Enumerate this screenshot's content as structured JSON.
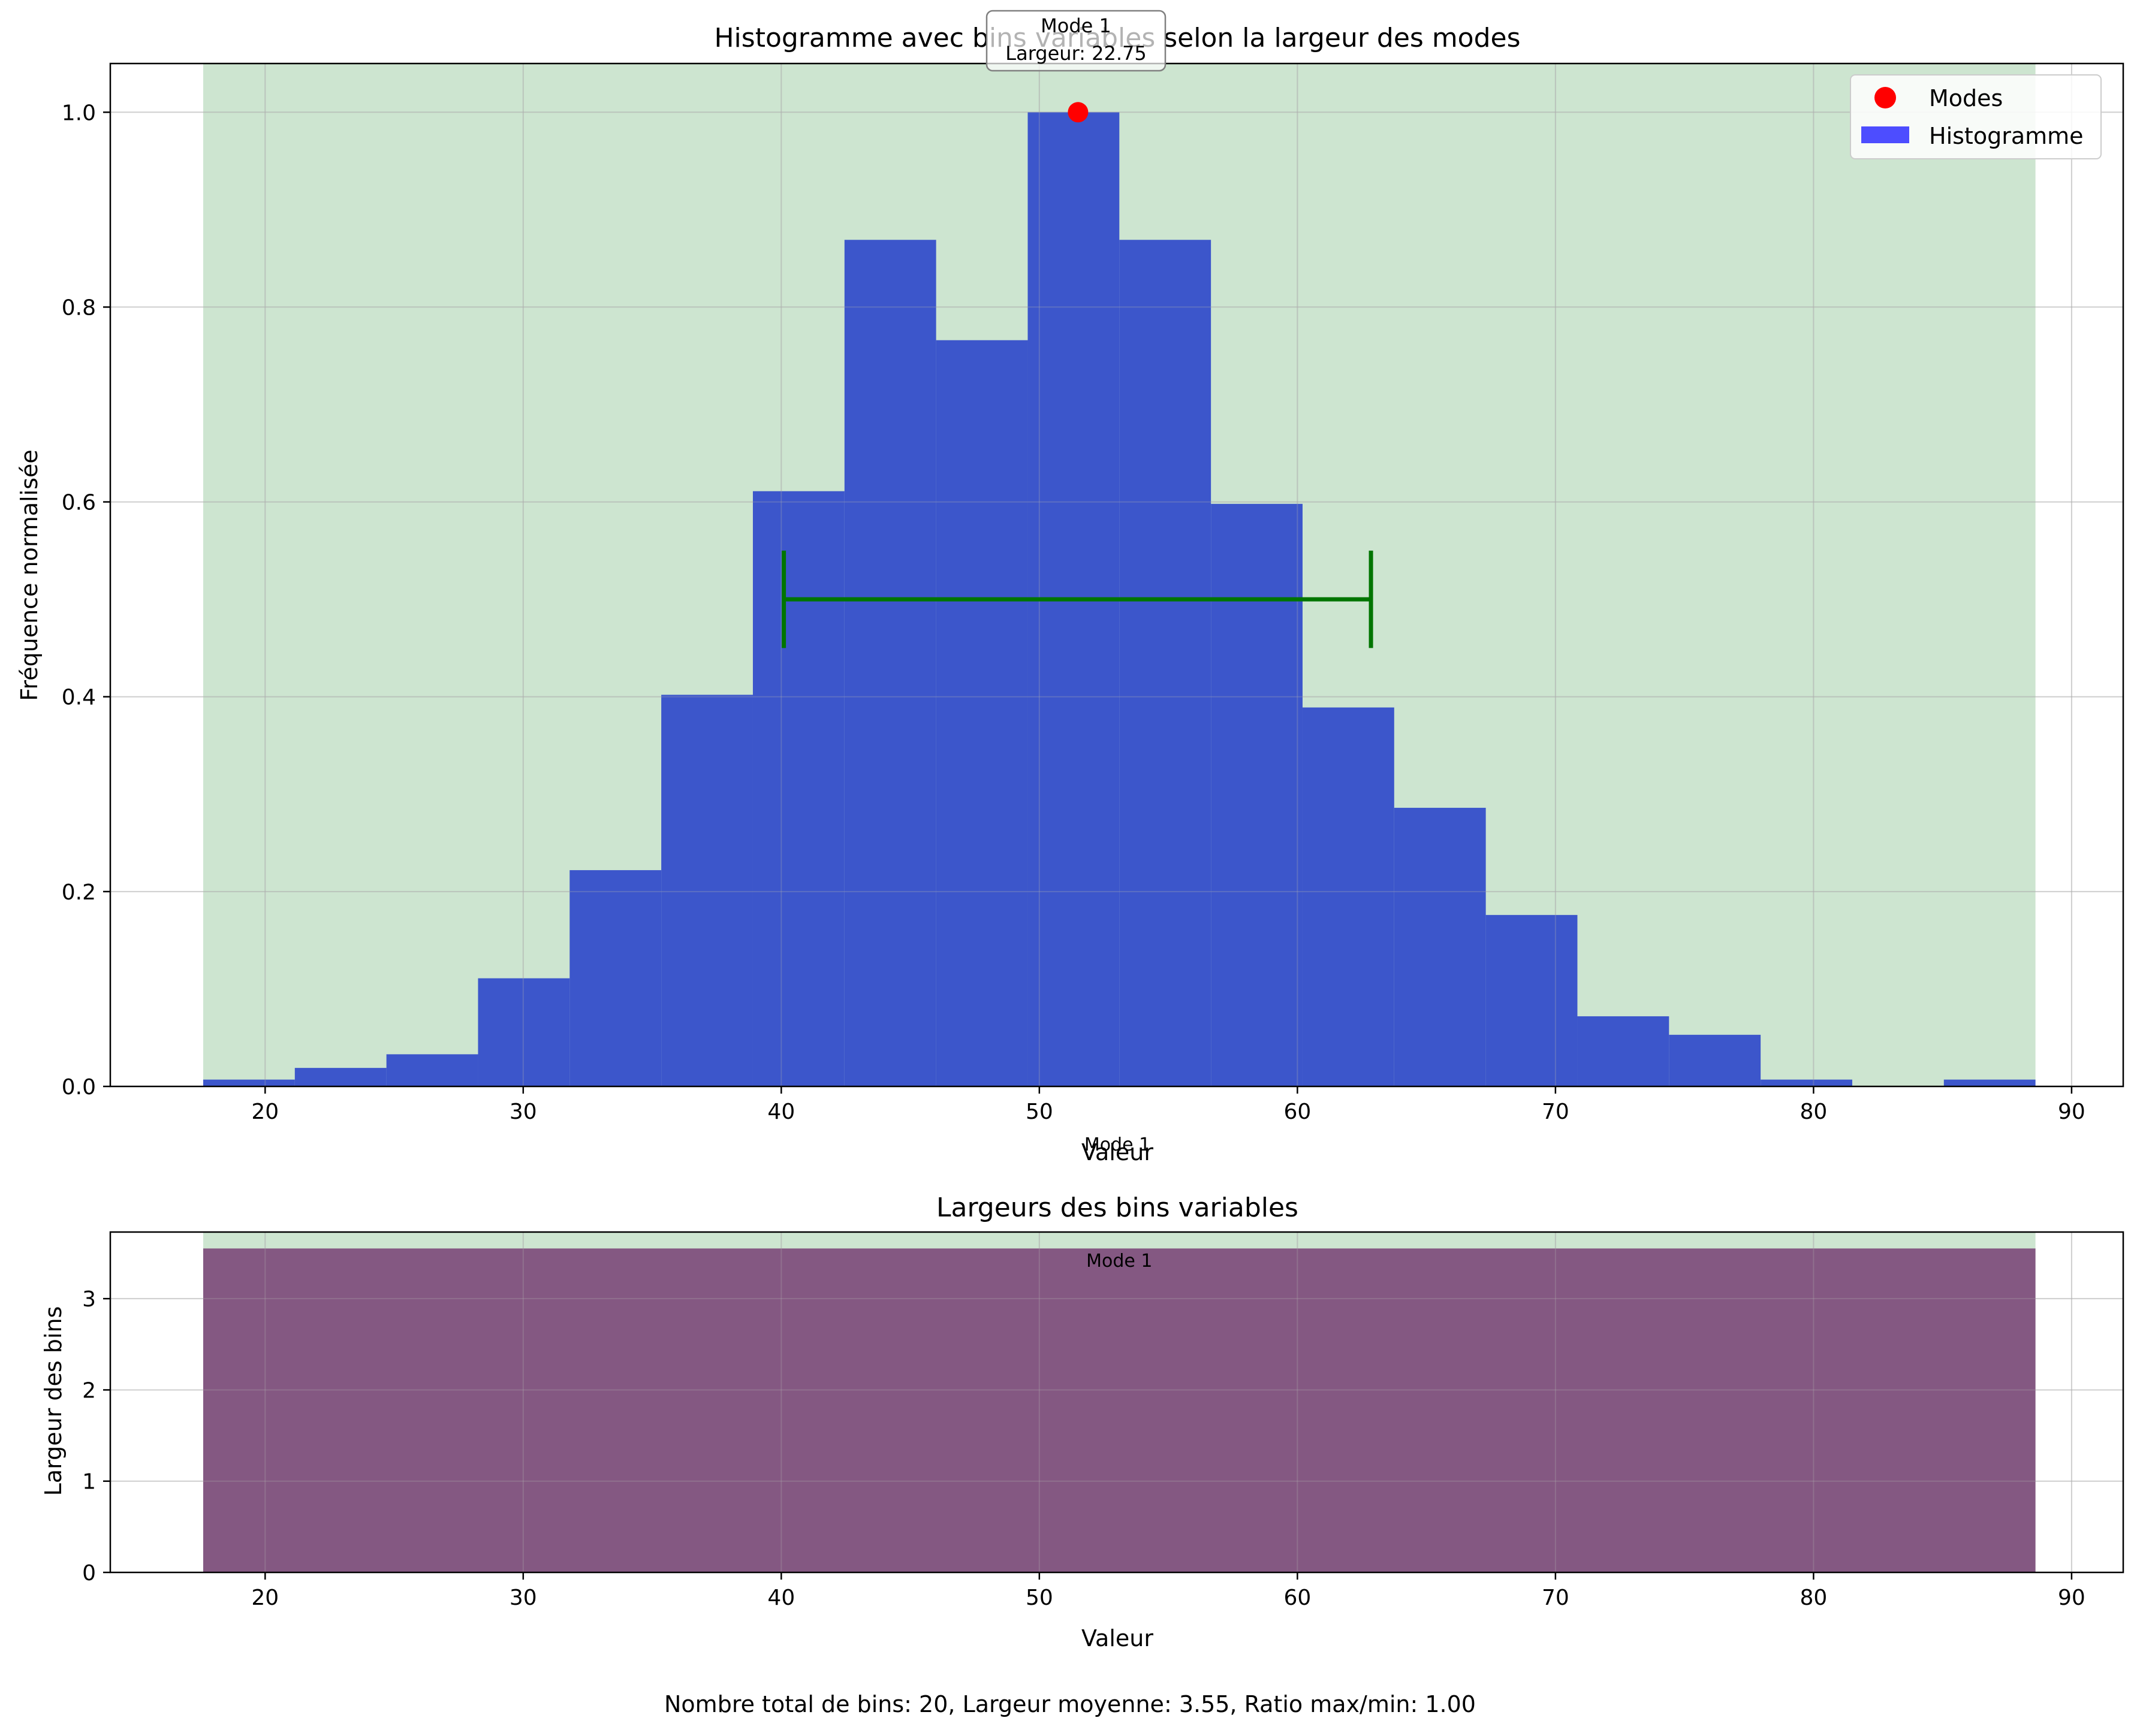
{
  "chart_data": [
    {
      "type": "bar",
      "title": "Histogramme avec bins variables selon la largeur des modes",
      "xlabel": "Valeur",
      "ylabel": "Fréquence normalisée",
      "xlim": [
        14,
        92
      ],
      "ylim": [
        0,
        1.05
      ],
      "xticks": [
        20,
        30,
        40,
        50,
        60,
        70,
        80,
        90
      ],
      "yticks": [
        "0.0",
        "0.2",
        "0.4",
        "0.6",
        "0.8",
        "1.0"
      ],
      "grid": true,
      "legend_position": "top-right",
      "legend": [
        {
          "label": "Modes",
          "marker": "dot",
          "color": "#ff0000"
        },
        {
          "label": "Histogramme",
          "marker": "patch",
          "color": "#4d4dff"
        }
      ],
      "bin_edges": [
        17.6,
        21.15,
        24.7,
        28.25,
        31.8,
        35.35,
        38.9,
        42.45,
        46.0,
        49.55,
        53.1,
        56.65,
        60.2,
        63.75,
        67.3,
        70.85,
        74.4,
        77.95,
        81.5,
        85.05,
        88.6
      ],
      "values": [
        0.007,
        0.019,
        0.033,
        0.111,
        0.222,
        0.402,
        0.611,
        0.869,
        0.766,
        1.0,
        0.869,
        0.598,
        0.389,
        0.286,
        0.176,
        0.072,
        0.053,
        0.007,
        0.0,
        0.007
      ],
      "bar_color": "#3c56cb",
      "mode_region": {
        "x": [
          17.6,
          88.6
        ],
        "color": "#cde5d0"
      },
      "modes": [
        {
          "x": 51.5,
          "y": 1.0,
          "color": "#ff0000",
          "label": "Mode 1",
          "annotation": "Largeur: 22.75",
          "width_bar": {
            "x_start": 40.1,
            "x_end": 62.85,
            "y": 0.5,
            "color": "#007500"
          }
        }
      ],
      "axis_mode_label": "Mode 1"
    },
    {
      "type": "bar",
      "title": "Largeurs des bins variables",
      "xlabel": "Valeur",
      "ylabel": "Largeur des bins",
      "xlim": [
        14,
        92
      ],
      "ylim": [
        0,
        3.73
      ],
      "xticks": [
        20,
        30,
        40,
        50,
        60,
        70,
        80,
        90
      ],
      "yticks": [
        0,
        1,
        2,
        3
      ],
      "grid": true,
      "bin_edges": [
        17.6,
        88.6
      ],
      "values": [
        3.55
      ],
      "bar_color": "#845882",
      "mode_region": {
        "x": [
          17.6,
          88.6
        ],
        "color": "#cde5d0"
      },
      "mode_label": {
        "text": "Mode 1",
        "x": 53.1,
        "y": 3.35
      }
    }
  ],
  "footer": "Nombre total de bins: 20, Largeur moyenne: 3.55, Ratio max/min: 1.00"
}
